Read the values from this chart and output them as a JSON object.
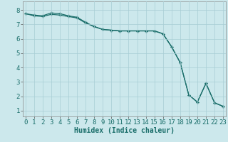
{
  "xlabel": "Humidex (Indice chaleur)",
  "bg_color": "#cce8ec",
  "grid_color": "#a8cdd4",
  "line_color": "#1a6e6a",
  "x_ticks": [
    0,
    1,
    2,
    3,
    4,
    5,
    6,
    7,
    8,
    9,
    10,
    11,
    12,
    13,
    14,
    15,
    16,
    17,
    18,
    19,
    20,
    21,
    22,
    23
  ],
  "y_ticks": [
    1,
    2,
    3,
    4,
    5,
    6,
    7,
    8
  ],
  "xlim": [
    -0.3,
    23.3
  ],
  "ylim": [
    0.6,
    8.6
  ],
  "series1_x": [
    0,
    1,
    2,
    3,
    4,
    5,
    6,
    7,
    8,
    9,
    10,
    11,
    12,
    13,
    14,
    15,
    16,
    17,
    18,
    19,
    20,
    21,
    22,
    23
  ],
  "series1_y": [
    7.75,
    7.6,
    7.55,
    7.7,
    7.65,
    7.55,
    7.45,
    7.1,
    6.85,
    6.65,
    6.6,
    6.55,
    6.55,
    6.55,
    6.55,
    6.55,
    6.35,
    5.45,
    4.35,
    2.1,
    1.6,
    2.9,
    1.55,
    1.3
  ],
  "series2_x": [
    0,
    1,
    2,
    3,
    4,
    5,
    6,
    7,
    8,
    9,
    10,
    11,
    12,
    13,
    14,
    15,
    16,
    17,
    18,
    19,
    20,
    21,
    22,
    23
  ],
  "series2_y": [
    7.75,
    7.65,
    7.6,
    7.8,
    7.75,
    7.6,
    7.5,
    7.15,
    6.85,
    6.65,
    6.6,
    6.55,
    6.55,
    6.55,
    6.55,
    6.55,
    6.35,
    5.45,
    4.35,
    2.1,
    1.6,
    2.9,
    1.55,
    1.3
  ],
  "label_fontsize": 7,
  "tick_fontsize": 6.5
}
